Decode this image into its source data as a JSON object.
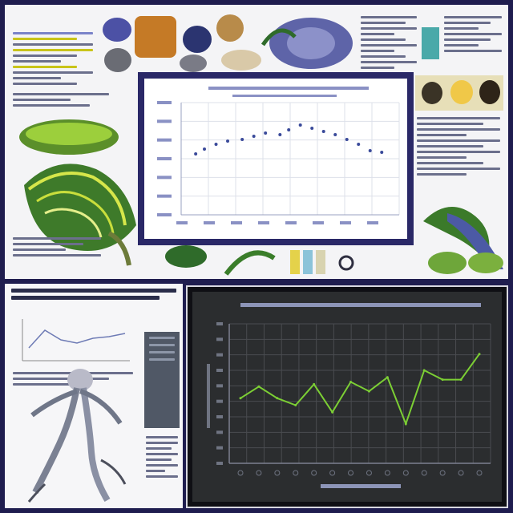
{
  "top_chart": {
    "chart_data": {
      "type": "scatter",
      "title": "",
      "xlabel": "",
      "ylabel": "",
      "grid": true,
      "x_count": 8,
      "series": [
        {
          "x": [
            1,
            1.3,
            1.7,
            2.1,
            2.6,
            3.0,
            3.4,
            3.9,
            4.2,
            4.6,
            5.0,
            5.4,
            5.8,
            6.2,
            6.6,
            7.0,
            7.4
          ],
          "y": [
            3.8,
            4.1,
            4.4,
            4.6,
            4.7,
            4.9,
            5.1,
            5.0,
            5.3,
            5.6,
            5.4,
            5.2,
            5.0,
            4.7,
            4.4,
            4.0,
            3.9
          ]
        }
      ],
      "ylim": [
        0,
        7
      ],
      "xlim": [
        0.5,
        8
      ]
    }
  },
  "dark_chart": {
    "chart_data": {
      "type": "line",
      "title": "",
      "xlabel": "",
      "ylabel": "",
      "grid": true,
      "line_color": "#7ccf34",
      "x": [
        1,
        2,
        3,
        4,
        5,
        6,
        7,
        8,
        9,
        10,
        11,
        12,
        13,
        14
      ],
      "series": [
        {
          "values": [
            28,
            33,
            28,
            25,
            34,
            22,
            35,
            31,
            37,
            17,
            40,
            36,
            36,
            47
          ]
        }
      ],
      "ylim": [
        0,
        60
      ]
    }
  },
  "colors": {
    "frame": "#2a2867",
    "background": "#1f1d4f",
    "accent_green": "#7ccf34",
    "highlight_yellow": "#c9c41a"
  }
}
